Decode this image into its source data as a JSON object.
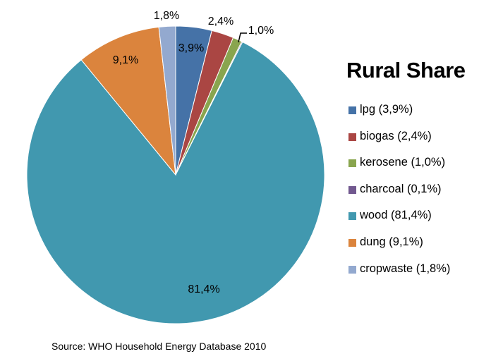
{
  "chart_data": {
    "type": "pie",
    "title": "Rural Share",
    "start_angle": "12 o'clock",
    "direction": "clockwise",
    "slices": [
      {
        "name": "lpg",
        "value": 3.9,
        "label": "3,9%",
        "legend": "lpg (3,9%)",
        "color": "#4572A7"
      },
      {
        "name": "biogas",
        "value": 2.4,
        "label": "2,4%",
        "legend": "biogas (2,4%)",
        "color": "#AA4643"
      },
      {
        "name": "kerosene",
        "value": 1.0,
        "label": "1,0%",
        "legend": "kerosene (1,0%)",
        "color": "#89A54E"
      },
      {
        "name": "charcoal",
        "value": 0.1,
        "label": "",
        "legend": "charcoal (0,1%)",
        "color": "#71588F"
      },
      {
        "name": "wood",
        "value": 81.4,
        "label": "81,4%",
        "legend": "wood (81,4%)",
        "color": "#4198AF"
      },
      {
        "name": "dung",
        "value": 9.1,
        "label": "9,1%",
        "legend": "dung (9,1%)",
        "color": "#DB843D"
      },
      {
        "name": "cropwaste",
        "value": 1.8,
        "label": "1,8%",
        "legend": "cropwaste (1,8%)",
        "color": "#93A9CF"
      }
    ],
    "legend_position": "right",
    "source": "Source: WHO Household Energy Database 2010"
  }
}
